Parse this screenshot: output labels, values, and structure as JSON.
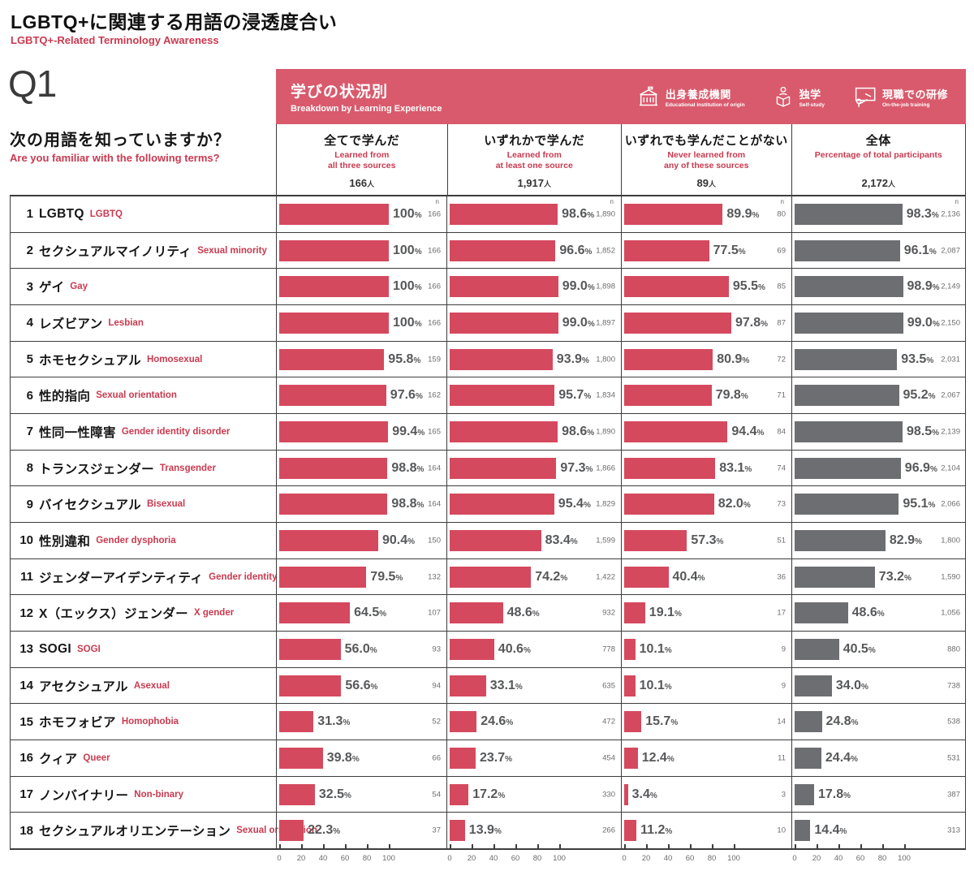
{
  "page": {
    "title_ja": "LGBTQ+に関連する用語の浸透度合い",
    "title_en": "LGBTQ+-Related Terminology Awareness",
    "q_label": "Q1",
    "question_ja": "次の用語を知っていますか？",
    "question_en": "Are you familiar with the following terms?"
  },
  "band": {
    "title_ja": "学びの状況別",
    "title_en": "Breakdown by Learning Experience",
    "legend": [
      {
        "icon": "school-building-icon",
        "ja": "出身養成機関",
        "en": "Educational institution of origin"
      },
      {
        "icon": "self-study-icon",
        "ja": "独学",
        "en": "Self-study"
      },
      {
        "icon": "on-the-job-training-icon",
        "ja": "現職での研修",
        "en": "On-the-job training"
      }
    ]
  },
  "strings": {
    "person_suffix": "人",
    "n_header": "n",
    "percent_sign": "%"
  },
  "columns": [
    {
      "ja": "全てで学んだ",
      "en1": "Learned from",
      "en2": "all three sources",
      "n": "166"
    },
    {
      "ja": "いずれかで学んだ",
      "en1": "Learned from",
      "en2": "at least one source",
      "n": "1,917"
    },
    {
      "ja": "いずれでも学んだことがない",
      "en1": "Never learned from",
      "en2": "any of these sources",
      "n": "89"
    },
    {
      "ja": "全体",
      "en1": "Percentage of total participants",
      "en2": "",
      "n": "2,172"
    }
  ],
  "axis": {
    "ticks": [
      0,
      20,
      40,
      60,
      80,
      100
    ]
  },
  "colors": {
    "band_pink": "#d95a6c",
    "bar_red": "#d5495e",
    "bar_gray": "#6d6e71",
    "text_red": "#c93a50"
  },
  "rows": [
    {
      "num": "1",
      "ja": "LGBTQ",
      "en": "LGBTQ",
      "cells": [
        {
          "pct": 100,
          "label": "100",
          "n": "166"
        },
        {
          "pct": 98.6,
          "label": "98.6",
          "n": "1,890"
        },
        {
          "pct": 89.9,
          "label": "89.9",
          "n": "80"
        },
        {
          "pct": 98.3,
          "label": "98.3",
          "n": "2,136"
        }
      ]
    },
    {
      "num": "2",
      "ja": "セクシュアルマイノリティ",
      "en": "Sexual minority",
      "cells": [
        {
          "pct": 100,
          "label": "100",
          "n": "166"
        },
        {
          "pct": 96.6,
          "label": "96.6",
          "n": "1,852"
        },
        {
          "pct": 77.5,
          "label": "77.5",
          "n": "69"
        },
        {
          "pct": 96.1,
          "label": "96.1",
          "n": "2,087"
        }
      ]
    },
    {
      "num": "3",
      "ja": "ゲイ",
      "en": "Gay",
      "cells": [
        {
          "pct": 100,
          "label": "100",
          "n": "166"
        },
        {
          "pct": 99.0,
          "label": "99.0",
          "n": "1,898"
        },
        {
          "pct": 95.5,
          "label": "95.5",
          "n": "85"
        },
        {
          "pct": 98.9,
          "label": "98.9",
          "n": "2,149"
        }
      ]
    },
    {
      "num": "4",
      "ja": "レズビアン",
      "en": "Lesbian",
      "cells": [
        {
          "pct": 100,
          "label": "100",
          "n": "166"
        },
        {
          "pct": 99.0,
          "label": "99.0",
          "n": "1,897"
        },
        {
          "pct": 97.8,
          "label": "97.8",
          "n": "87"
        },
        {
          "pct": 99.0,
          "label": "99.0",
          "n": "2,150"
        }
      ]
    },
    {
      "num": "5",
      "ja": "ホモセクシュアル",
      "en": "Homosexual",
      "cells": [
        {
          "pct": 95.8,
          "label": "95.8",
          "n": "159"
        },
        {
          "pct": 93.9,
          "label": "93.9",
          "n": "1,800"
        },
        {
          "pct": 80.9,
          "label": "80.9",
          "n": "72"
        },
        {
          "pct": 93.5,
          "label": "93.5",
          "n": "2,031"
        }
      ]
    },
    {
      "num": "6",
      "ja": "性的指向",
      "en": "Sexual orientation",
      "cells": [
        {
          "pct": 97.6,
          "label": "97.6",
          "n": "162"
        },
        {
          "pct": 95.7,
          "label": "95.7",
          "n": "1,834"
        },
        {
          "pct": 79.8,
          "label": "79.8",
          "n": "71"
        },
        {
          "pct": 95.2,
          "label": "95.2",
          "n": "2,067"
        }
      ]
    },
    {
      "num": "7",
      "ja": "性同一性障害",
      "en": "Gender identity disorder",
      "cells": [
        {
          "pct": 99.4,
          "label": "99.4",
          "n": "165"
        },
        {
          "pct": 98.6,
          "label": "98.6",
          "n": "1,890"
        },
        {
          "pct": 94.4,
          "label": "94.4",
          "n": "84"
        },
        {
          "pct": 98.5,
          "label": "98.5",
          "n": "2,139"
        }
      ]
    },
    {
      "num": "8",
      "ja": "トランスジェンダー",
      "en": "Transgender",
      "cells": [
        {
          "pct": 98.8,
          "label": "98.8",
          "n": "164"
        },
        {
          "pct": 97.3,
          "label": "97.3",
          "n": "1,866"
        },
        {
          "pct": 83.1,
          "label": "83.1",
          "n": "74"
        },
        {
          "pct": 96.9,
          "label": "96.9",
          "n": "2,104"
        }
      ]
    },
    {
      "num": "9",
      "ja": "バイセクシュアル",
      "en": "Bisexual",
      "cells": [
        {
          "pct": 98.8,
          "label": "98.8",
          "n": "164"
        },
        {
          "pct": 95.4,
          "label": "95.4",
          "n": "1,829"
        },
        {
          "pct": 82.0,
          "label": "82.0",
          "n": "73"
        },
        {
          "pct": 95.1,
          "label": "95.1",
          "n": "2,066"
        }
      ]
    },
    {
      "num": "10",
      "ja": "性別違和",
      "en": "Gender dysphoria",
      "cells": [
        {
          "pct": 90.4,
          "label": "90.4",
          "n": "150"
        },
        {
          "pct": 83.4,
          "label": "83.4",
          "n": "1,599"
        },
        {
          "pct": 57.3,
          "label": "57.3",
          "n": "51"
        },
        {
          "pct": 82.9,
          "label": "82.9",
          "n": "1,800"
        }
      ]
    },
    {
      "num": "11",
      "ja": "ジェンダーアイデンティティ",
      "en": "Gender identity",
      "cells": [
        {
          "pct": 79.5,
          "label": "79.5",
          "n": "132"
        },
        {
          "pct": 74.2,
          "label": "74.2",
          "n": "1,422"
        },
        {
          "pct": 40.4,
          "label": "40.4",
          "n": "36"
        },
        {
          "pct": 73.2,
          "label": "73.2",
          "n": "1,590"
        }
      ]
    },
    {
      "num": "12",
      "ja": "X（エックス）ジェンダー",
      "en": "X gender",
      "cells": [
        {
          "pct": 64.5,
          "label": "64.5",
          "n": "107"
        },
        {
          "pct": 48.6,
          "label": "48.6",
          "n": "932"
        },
        {
          "pct": 19.1,
          "label": "19.1",
          "n": "17"
        },
        {
          "pct": 48.6,
          "label": "48.6",
          "n": "1,056"
        }
      ]
    },
    {
      "num": "13",
      "ja": "SOGI",
      "en": "SOGI",
      "cells": [
        {
          "pct": 56.0,
          "label": "56.0",
          "n": "93"
        },
        {
          "pct": 40.6,
          "label": "40.6",
          "n": "778"
        },
        {
          "pct": 10.1,
          "label": "10.1",
          "n": "9"
        },
        {
          "pct": 40.5,
          "label": "40.5",
          "n": "880"
        }
      ]
    },
    {
      "num": "14",
      "ja": "アセクシュアル",
      "en": "Asexual",
      "cells": [
        {
          "pct": 56.6,
          "label": "56.6",
          "n": "94"
        },
        {
          "pct": 33.1,
          "label": "33.1",
          "n": "635"
        },
        {
          "pct": 10.1,
          "label": "10.1",
          "n": "9"
        },
        {
          "pct": 34.0,
          "label": "34.0",
          "n": "738"
        }
      ]
    },
    {
      "num": "15",
      "ja": "ホモフォビア",
      "en": "Homophobia",
      "cells": [
        {
          "pct": 31.3,
          "label": "31.3",
          "n": "52"
        },
        {
          "pct": 24.6,
          "label": "24.6",
          "n": "472"
        },
        {
          "pct": 15.7,
          "label": "15.7",
          "n": "14"
        },
        {
          "pct": 24.8,
          "label": "24.8",
          "n": "538"
        }
      ]
    },
    {
      "num": "16",
      "ja": "クィア",
      "en": "Queer",
      "cells": [
        {
          "pct": 39.8,
          "label": "39.8",
          "n": "66"
        },
        {
          "pct": 23.7,
          "label": "23.7",
          "n": "454"
        },
        {
          "pct": 12.4,
          "label": "12.4",
          "n": "11"
        },
        {
          "pct": 24.4,
          "label": "24.4",
          "n": "531"
        }
      ]
    },
    {
      "num": "17",
      "ja": "ノンバイナリー",
      "en": "Non-binary",
      "cells": [
        {
          "pct": 32.5,
          "label": "32.5",
          "n": "54"
        },
        {
          "pct": 17.2,
          "label": "17.2",
          "n": "330"
        },
        {
          "pct": 3.4,
          "label": "3.4",
          "n": "3"
        },
        {
          "pct": 17.8,
          "label": "17.8",
          "n": "387"
        }
      ]
    },
    {
      "num": "18",
      "ja": "セクシュアルオリエンテーション",
      "en": "Sexual orientation",
      "cells": [
        {
          "pct": 22.3,
          "label": "22.3",
          "n": "37"
        },
        {
          "pct": 13.9,
          "label": "13.9",
          "n": "266"
        },
        {
          "pct": 11.2,
          "label": "11.2",
          "n": "10"
        },
        {
          "pct": 14.4,
          "label": "14.4",
          "n": "313"
        }
      ]
    }
  ],
  "chart_data": {
    "type": "bar",
    "orientation": "horizontal",
    "title": "LGBTQ+に関連する用語の浸透度合い (LGBTQ+-Related Terminology Awareness)",
    "x_axis": {
      "range": [
        0,
        100
      ],
      "ticks": [
        0,
        20,
        40,
        60,
        80,
        100
      ],
      "unit": "%"
    },
    "categories": [
      "LGBTQ",
      "セクシュアルマイノリティ",
      "ゲイ",
      "レズビアン",
      "ホモセクシュアル",
      "性的指向",
      "性同一性障害",
      "トランスジェンダー",
      "バイセクシュアル",
      "性別違和",
      "ジェンダーアイデンティティ",
      "X（エックス）ジェンダー",
      "SOGI",
      "アセクシュアル",
      "ホモフォビア",
      "クィア",
      "ノンバイナリー",
      "セクシュアルオリエンテーション"
    ],
    "categories_en": [
      "LGBTQ",
      "Sexual minority",
      "Gay",
      "Lesbian",
      "Homosexual",
      "Sexual orientation",
      "Gender identity disorder",
      "Transgender",
      "Bisexual",
      "Gender dysphoria",
      "Gender identity",
      "X gender",
      "SOGI",
      "Asexual",
      "Homophobia",
      "Queer",
      "Non-binary",
      "Sexual orientation"
    ],
    "series": [
      {
        "name": "全てで学んだ (Learned from all three sources)",
        "n_total": 166,
        "color": "#d5495e",
        "values": [
          100,
          100,
          100,
          100,
          95.8,
          97.6,
          99.4,
          98.8,
          98.8,
          90.4,
          79.5,
          64.5,
          56.0,
          56.6,
          31.3,
          39.8,
          32.5,
          22.3
        ],
        "counts": [
          166,
          166,
          166,
          166,
          159,
          162,
          165,
          164,
          164,
          150,
          132,
          107,
          93,
          94,
          52,
          66,
          54,
          37
        ]
      },
      {
        "name": "いずれかで学んだ (Learned from at least one source)",
        "n_total": 1917,
        "color": "#d5495e",
        "values": [
          98.6,
          96.6,
          99.0,
          99.0,
          93.9,
          95.7,
          98.6,
          97.3,
          95.4,
          83.4,
          74.2,
          48.6,
          40.6,
          33.1,
          24.6,
          23.7,
          17.2,
          13.9
        ],
        "counts": [
          1890,
          1852,
          1898,
          1897,
          1800,
          1834,
          1890,
          1866,
          1829,
          1599,
          1422,
          932,
          778,
          635,
          472,
          454,
          330,
          266
        ]
      },
      {
        "name": "いずれでも学んだことがない (Never learned from any of these sources)",
        "n_total": 89,
        "color": "#d5495e",
        "values": [
          89.9,
          77.5,
          95.5,
          97.8,
          80.9,
          79.8,
          94.4,
          83.1,
          82.0,
          57.3,
          40.4,
          19.1,
          10.1,
          10.1,
          15.7,
          12.4,
          3.4,
          11.2
        ],
        "counts": [
          80,
          69,
          85,
          87,
          72,
          71,
          84,
          74,
          73,
          51,
          36,
          17,
          9,
          9,
          14,
          11,
          3,
          10
        ]
      },
      {
        "name": "全体 (Percentage of total participants)",
        "n_total": 2172,
        "color": "#6d6e71",
        "values": [
          98.3,
          96.1,
          98.9,
          99.0,
          93.5,
          95.2,
          98.5,
          96.9,
          95.1,
          82.9,
          73.2,
          48.6,
          40.5,
          34.0,
          24.8,
          24.4,
          17.8,
          14.4
        ],
        "counts": [
          2136,
          2087,
          2149,
          2150,
          2031,
          2067,
          2139,
          2104,
          2066,
          1800,
          1590,
          1056,
          880,
          738,
          538,
          531,
          387,
          313
        ]
      }
    ],
    "legend_position": "top"
  }
}
